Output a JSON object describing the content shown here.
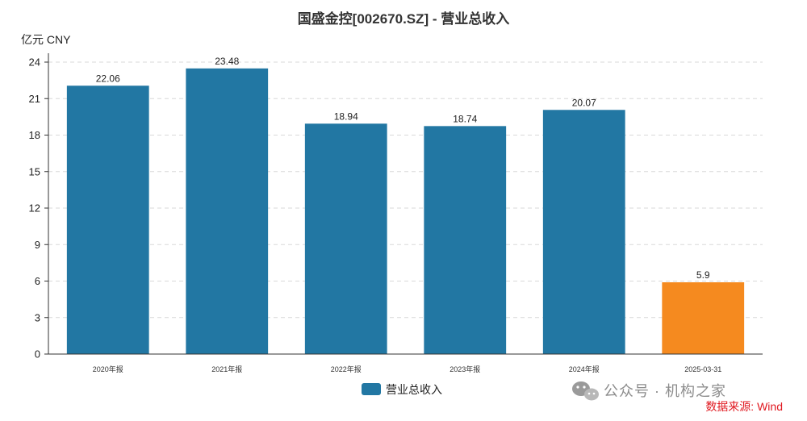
{
  "chart_data": {
    "type": "bar",
    "title": "国盛金控[002670.SZ] - 营业总收入",
    "ylabel": "亿元  CNY",
    "categories": [
      "2020年报",
      "2021年报",
      "2022年报",
      "2023年报",
      "2024年报",
      "2025-03-31"
    ],
    "series": [
      {
        "name": "营业总收入",
        "values": [
          22.06,
          23.48,
          18.94,
          18.74,
          20.07,
          5.9
        ]
      }
    ],
    "data_labels": [
      "22.06",
      "23.48",
      "18.94",
      "18.74",
      "20.07",
      "5.9"
    ],
    "highlight_index": 5,
    "ylim": [
      0,
      24
    ],
    "yticks": [
      0,
      3,
      6,
      9,
      12,
      15,
      18,
      21,
      24
    ],
    "grid": "horizontal dashed",
    "legend": "bottom-center",
    "colors": {
      "bar": "#2277a3",
      "highlight": "#f58a1f",
      "source": "#e0181f"
    }
  },
  "source_label": "数据来源: Wind",
  "watermark": {
    "text": "公众号 · 机构之家",
    "icon": "wechat-icon"
  }
}
